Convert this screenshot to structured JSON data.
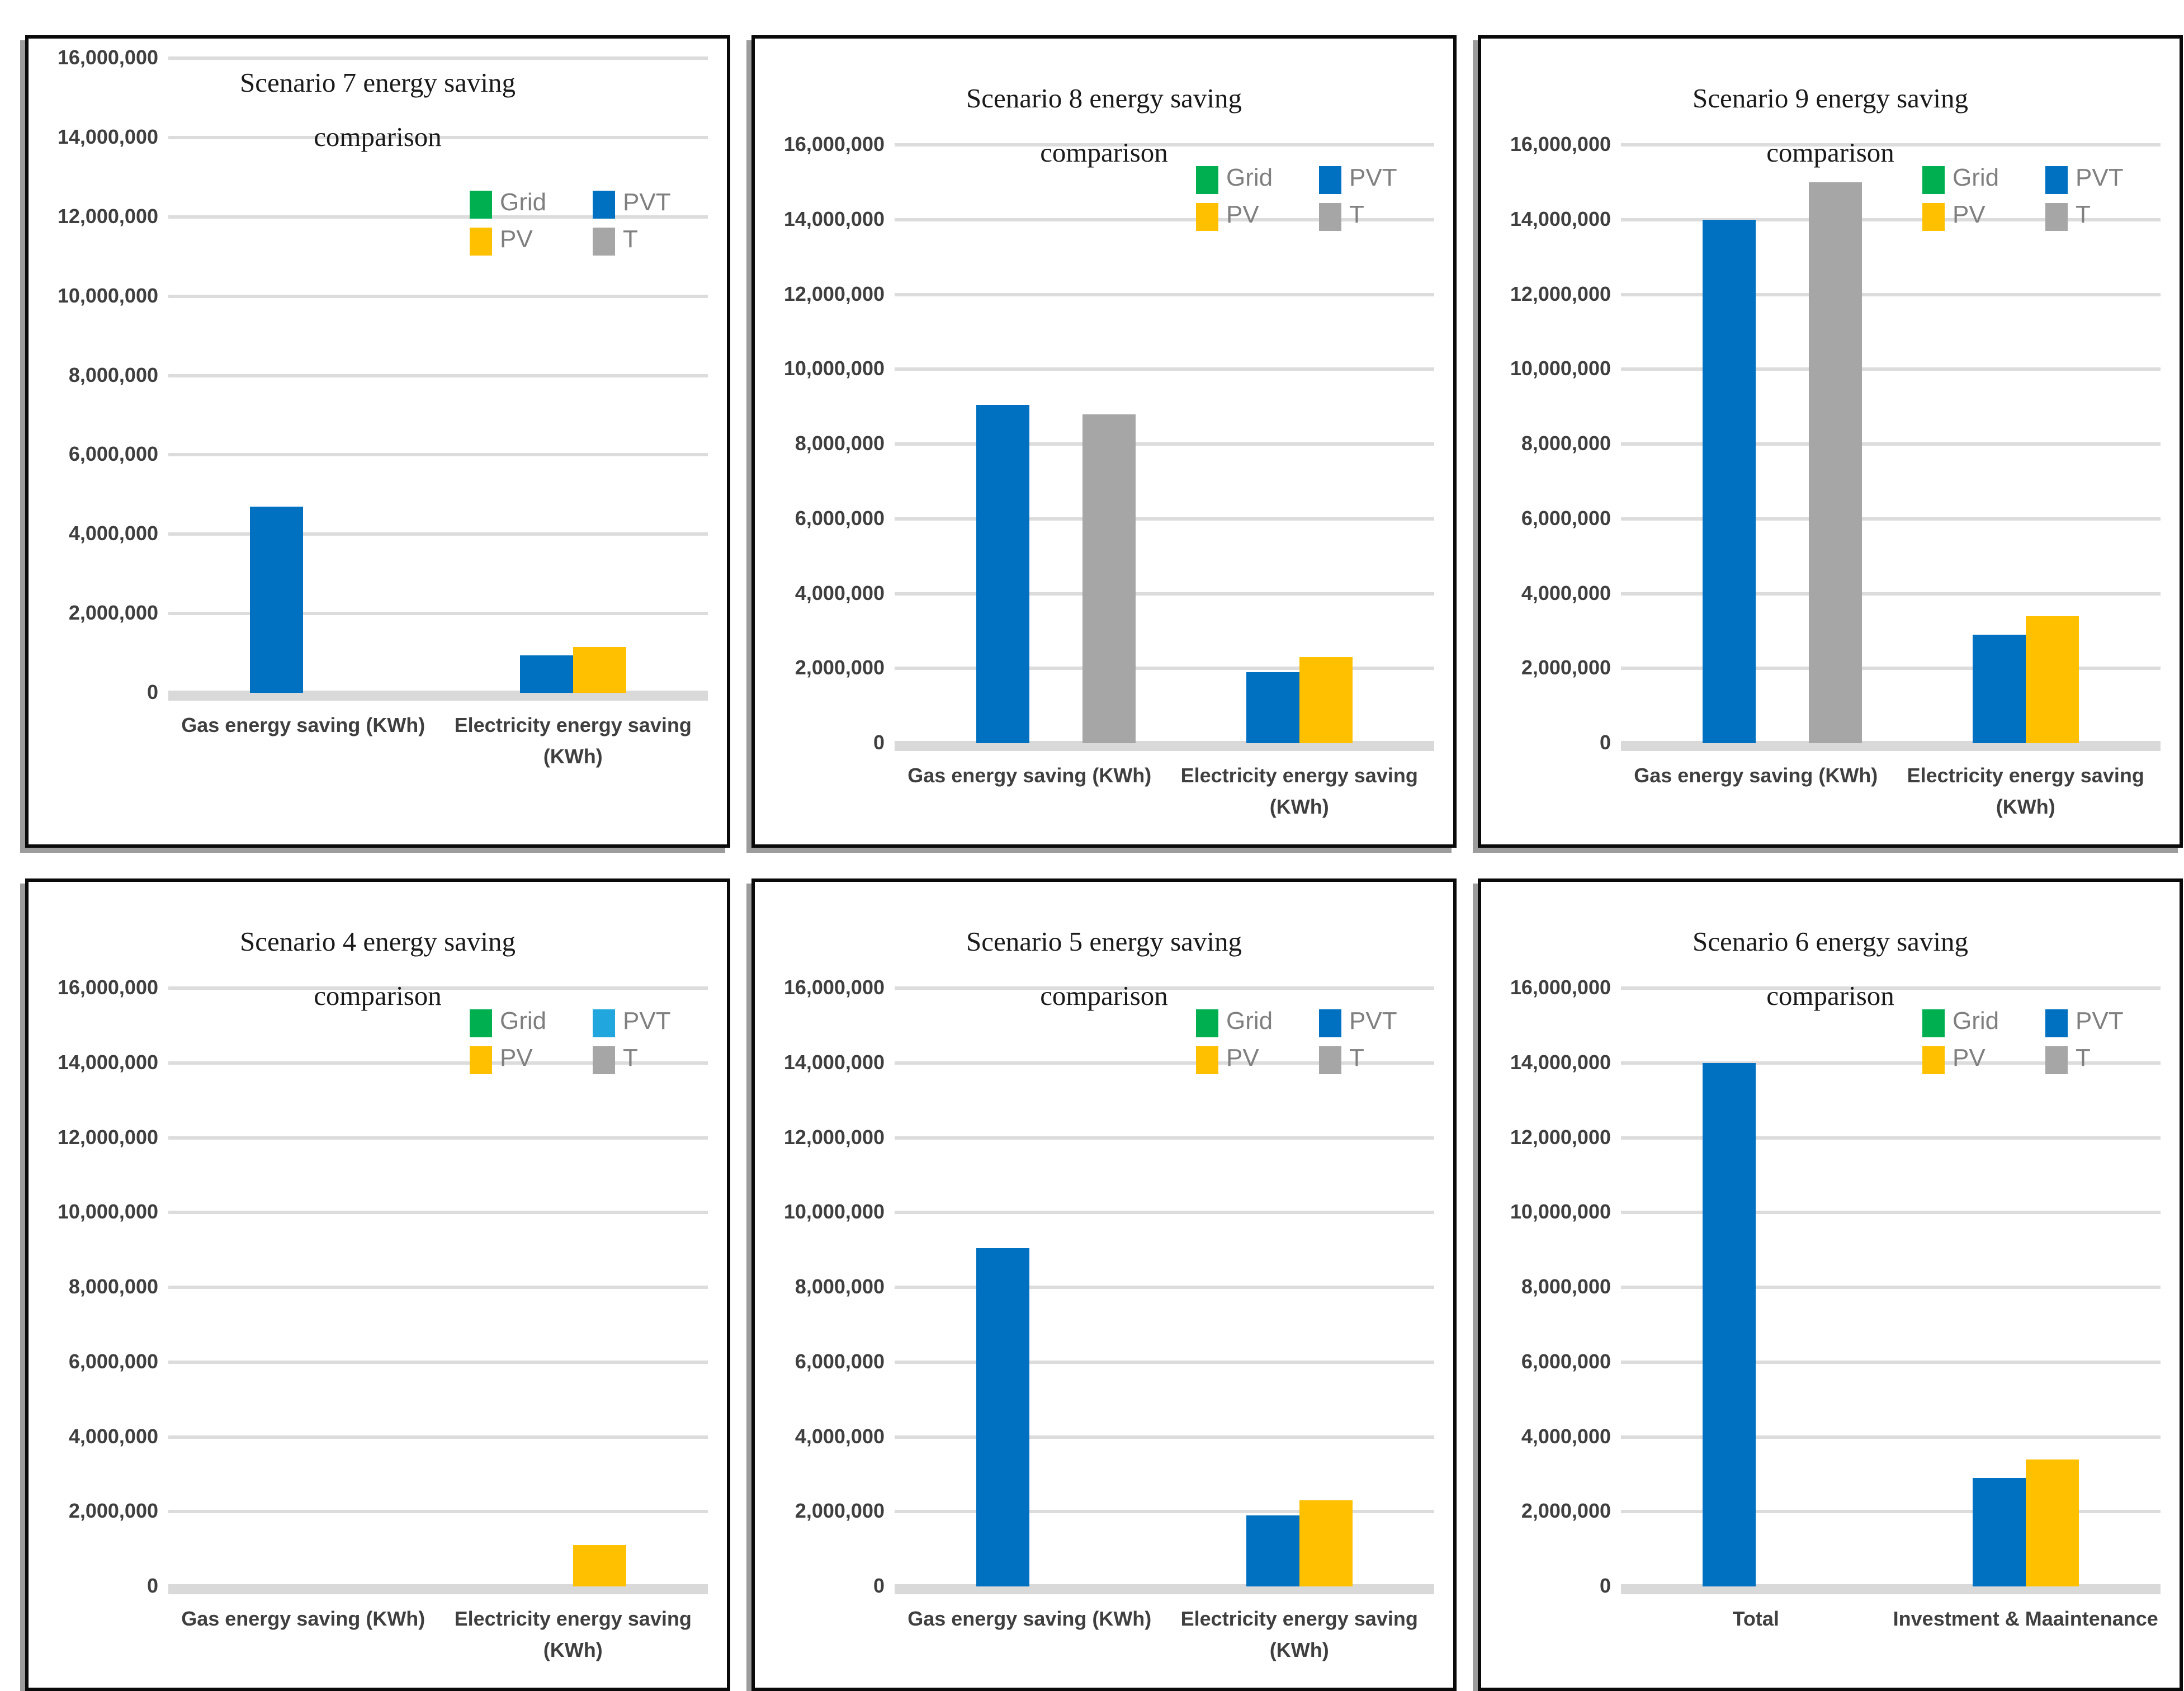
{
  "page": {
    "background": "#ffffff"
  },
  "palette": {
    "grid_green": "#00B050",
    "pvt_blue": "#0070C0",
    "pv_yellow": "#FFC000",
    "t_gray": "#A6A6A6",
    "pvt_blue_light": "#21A7DE",
    "gridline": "#dcdcdc",
    "baseline": "#d9d9d9",
    "axis_text": "#3f3f3f",
    "legend_text": "#7f7f7f",
    "title_text": "#1a1a1a",
    "panel_border": "#0a0a0a",
    "panel_shadow": "#9c9c9c"
  },
  "axis": {
    "max": 16000000,
    "ticks": [
      {
        "label": "16,000,000",
        "value": 16000000
      },
      {
        "label": "14,000,000",
        "value": 14000000
      },
      {
        "label": "12,000,000",
        "value": 12000000
      },
      {
        "label": "10,000,000",
        "value": 10000000
      },
      {
        "label": "8,000,000",
        "value": 8000000
      },
      {
        "label": "6,000,000",
        "value": 6000000
      },
      {
        "label": "4,000,000",
        "value": 4000000
      },
      {
        "label": "2,000,000",
        "value": 2000000
      },
      {
        "label": "0",
        "value": 0
      }
    ]
  },
  "legend": {
    "rows": [
      [
        {
          "label": "Grid",
          "series": "grid"
        },
        {
          "label": "PVT",
          "series": "pvt"
        }
      ],
      [
        {
          "label": "PV",
          "series": "pv"
        },
        {
          "label": "T",
          "series": "t"
        }
      ]
    ]
  },
  "chart_data": [
    {
      "id": "scenario7",
      "type": "bar",
      "layout": "tall",
      "title": "Scenario 7 energy saving\ncomparison",
      "categories": [
        "Gas energy saving (KWh)",
        "Electricity energy saving (KWh)"
      ],
      "ylim": [
        0,
        16000000
      ],
      "grid": true,
      "legend_position": "inside-top-right",
      "series": [
        {
          "name": "Grid",
          "color_key": "grid_green",
          "values": [
            0,
            0
          ]
        },
        {
          "name": "PVT",
          "color_key": "pvt_blue",
          "values": [
            4700000,
            950000
          ]
        },
        {
          "name": "PV",
          "color_key": "pv_yellow",
          "values": [
            0,
            1150000
          ]
        },
        {
          "name": "T",
          "color_key": "t_gray",
          "values": [
            0,
            0
          ]
        }
      ]
    },
    {
      "id": "scenario8",
      "type": "bar",
      "layout": "standard",
      "title": "Scenario 8 energy saving\ncomparison",
      "categories": [
        "Gas energy saving (KWh)",
        "Electricity energy saving (KWh)"
      ],
      "ylim": [
        0,
        16000000
      ],
      "grid": true,
      "legend_position": "inside-top-right",
      "series": [
        {
          "name": "Grid",
          "color_key": "grid_green",
          "values": [
            0,
            0
          ]
        },
        {
          "name": "PVT",
          "color_key": "pvt_blue",
          "values": [
            9050000,
            1900000
          ]
        },
        {
          "name": "PV",
          "color_key": "pv_yellow",
          "values": [
            0,
            2300000
          ]
        },
        {
          "name": "T",
          "color_key": "t_gray",
          "values": [
            8800000,
            0
          ]
        }
      ]
    },
    {
      "id": "scenario9",
      "type": "bar",
      "layout": "standard",
      "title": "Scenario 9 energy saving\ncomparison",
      "categories": [
        "Gas energy saving (KWh)",
        "Electricity energy saving (KWh)"
      ],
      "ylim": [
        0,
        16000000
      ],
      "grid": true,
      "legend_position": "inside-top-right",
      "series": [
        {
          "name": "Grid",
          "color_key": "grid_green",
          "values": [
            0,
            0
          ]
        },
        {
          "name": "PVT",
          "color_key": "pvt_blue",
          "values": [
            14000000,
            2900000
          ]
        },
        {
          "name": "PV",
          "color_key": "pv_yellow",
          "values": [
            0,
            3400000
          ]
        },
        {
          "name": "T",
          "color_key": "t_gray",
          "values": [
            15000000,
            0
          ]
        }
      ]
    },
    {
      "id": "scenario4",
      "type": "bar",
      "layout": "standard",
      "title": "Scenario 4 energy saving\ncomparison",
      "categories": [
        "Gas energy saving (KWh)",
        "Electricity energy saving (KWh)"
      ],
      "ylim": [
        0,
        16000000
      ],
      "grid": true,
      "legend_position": "inside-top-right",
      "pvt_legend_color_key": "pvt_blue_light",
      "series": [
        {
          "name": "Grid",
          "color_key": "grid_green",
          "values": [
            0,
            0
          ]
        },
        {
          "name": "PVT",
          "color_key": "pvt_blue",
          "values": [
            0,
            0
          ]
        },
        {
          "name": "PV",
          "color_key": "pv_yellow",
          "values": [
            0,
            1100000
          ]
        },
        {
          "name": "T",
          "color_key": "t_gray",
          "values": [
            0,
            0
          ]
        }
      ]
    },
    {
      "id": "scenario5",
      "type": "bar",
      "layout": "standard",
      "title": "Scenario 5 energy saving\ncomparison",
      "categories": [
        "Gas energy saving (KWh)",
        "Electricity energy saving (KWh)"
      ],
      "ylim": [
        0,
        16000000
      ],
      "grid": true,
      "legend_position": "inside-top-right",
      "series": [
        {
          "name": "Grid",
          "color_key": "grid_green",
          "values": [
            0,
            0
          ]
        },
        {
          "name": "PVT",
          "color_key": "pvt_blue",
          "values": [
            9050000,
            1900000
          ]
        },
        {
          "name": "PV",
          "color_key": "pv_yellow",
          "values": [
            0,
            2300000
          ]
        },
        {
          "name": "T",
          "color_key": "t_gray",
          "values": [
            0,
            0
          ]
        }
      ]
    },
    {
      "id": "scenario6",
      "type": "bar",
      "layout": "standard",
      "title": "Scenario 6 energy saving\ncomparison",
      "categories": [
        "Total",
        "Investment & Maaintenance"
      ],
      "ylim": [
        0,
        16000000
      ],
      "grid": true,
      "legend_position": "inside-top-right",
      "series": [
        {
          "name": "Grid",
          "color_key": "grid_green",
          "values": [
            0,
            0
          ]
        },
        {
          "name": "PVT",
          "color_key": "pvt_blue",
          "values": [
            14000000,
            2900000
          ]
        },
        {
          "name": "PV",
          "color_key": "pv_yellow",
          "values": [
            0,
            3400000
          ]
        },
        {
          "name": "T",
          "color_key": "t_gray",
          "values": [
            0,
            0
          ]
        }
      ]
    }
  ]
}
